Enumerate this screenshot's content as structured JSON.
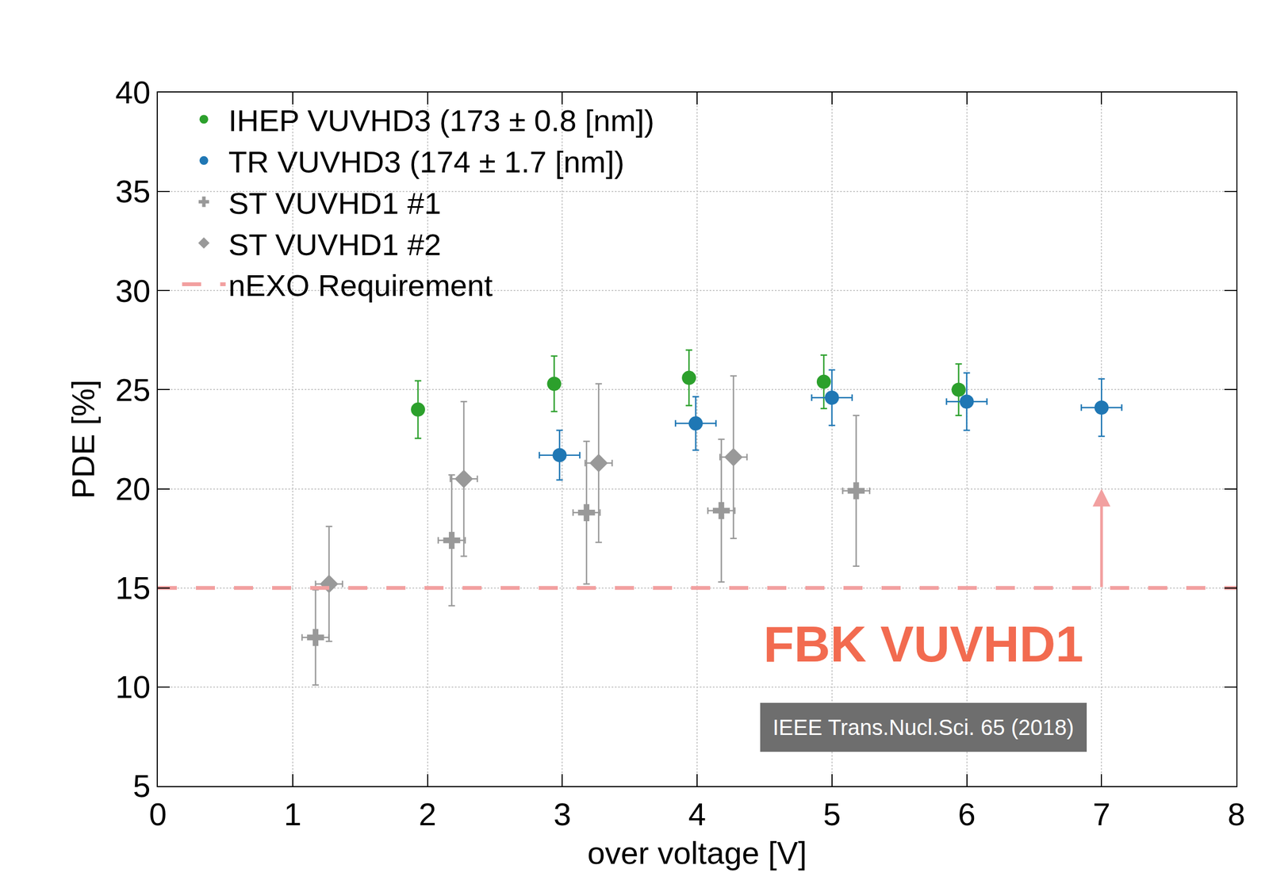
{
  "chart_data": {
    "type": "scatter",
    "x_label": "over voltage [V]",
    "y_label": "PDE [%]",
    "xlim": [
      0,
      8
    ],
    "xticks": [
      0,
      1,
      2,
      3,
      4,
      5,
      6,
      7,
      8
    ],
    "ylim": [
      5,
      40
    ],
    "yticks": [
      5,
      10,
      15,
      20,
      25,
      30,
      35,
      40
    ],
    "grid": true,
    "legend": "upper left",
    "series": [
      {
        "name": "IHEP VUVHD3 (173 ± 0.8 [nm])",
        "color": "#2ca02c",
        "marker": "circle",
        "x": [
          1.93,
          2.94,
          3.94,
          4.94,
          5.94
        ],
        "values": [
          24.0,
          25.3,
          25.6,
          25.4,
          25.0
        ],
        "y_errors": [
          1.45,
          1.4,
          1.4,
          1.35,
          1.3
        ]
      },
      {
        "name": "TR VUVHD3 (174 ± 1.7 [nm])",
        "color": "#1f77b4",
        "marker": "circle",
        "x": [
          2.98,
          3.99,
          5.0,
          6.0,
          7.0
        ],
        "values": [
          21.7,
          23.3,
          24.6,
          24.4,
          24.1
        ],
        "y_errors": [
          1.25,
          1.35,
          1.4,
          1.45,
          1.45
        ],
        "x_errors": [
          0.15,
          0.15,
          0.15,
          0.15,
          0.15
        ]
      },
      {
        "name": "ST VUVHD1 #1",
        "color": "#999999",
        "marker": "cross",
        "x": [
          1.17,
          2.18,
          3.18,
          4.18,
          5.18
        ],
        "values": [
          12.5,
          17.4,
          18.8,
          18.9,
          19.9
        ],
        "y_errors": [
          2.4,
          3.3,
          3.6,
          3.6,
          3.8
        ],
        "x_errors": [
          0.1,
          0.1,
          0.1,
          0.1,
          0.1
        ]
      },
      {
        "name": "ST VUVHD1 #2",
        "color": "#999999",
        "marker": "diamond",
        "x": [
          1.27,
          2.27,
          3.27,
          4.27
        ],
        "values": [
          15.2,
          20.5,
          21.3,
          21.6
        ],
        "y_errors": [
          2.9,
          3.9,
          4.0,
          4.1
        ],
        "x_errors": [
          0.1,
          0.1,
          0.1,
          0.1
        ]
      }
    ],
    "reference_line": {
      "name": "nEXO Requirement",
      "value": 15,
      "color": "#f2a0a0",
      "line_style": "dashed",
      "arrow": {
        "x": 7,
        "from": 15,
        "to": 20
      }
    },
    "annotations": [
      "FBK VUVHD1",
      "IEEE Trans.Nucl.Sci. 65 (2018)"
    ]
  }
}
